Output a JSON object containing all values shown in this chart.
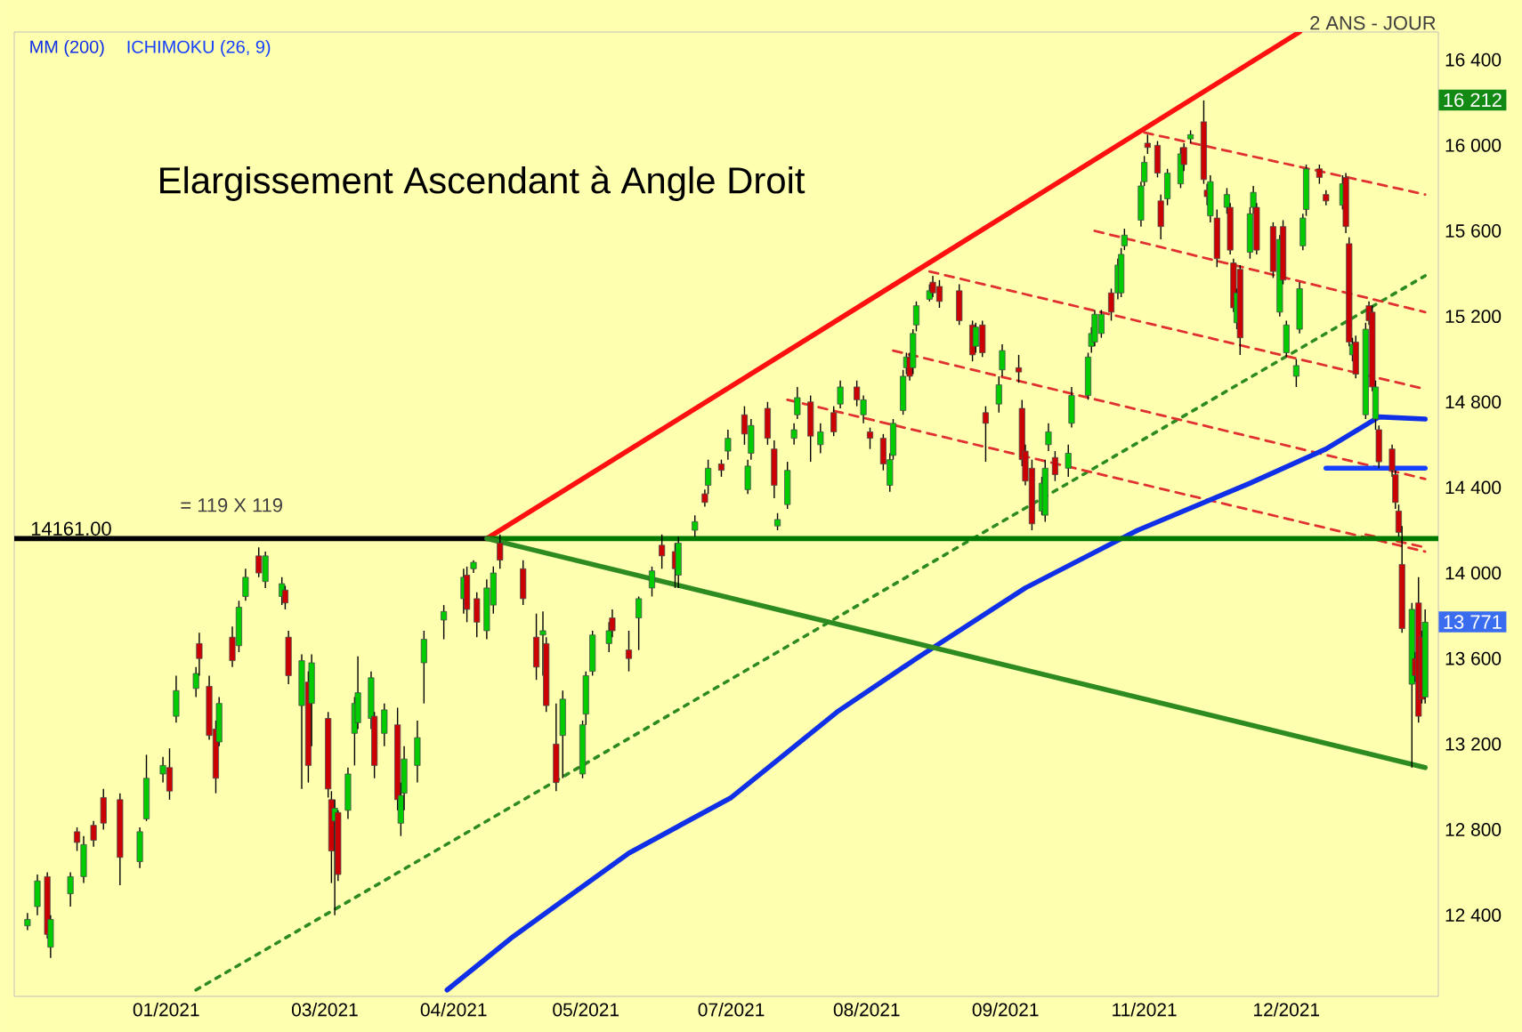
{
  "chart_data": {
    "type": "candlestick",
    "title": "Elargissement Ascendant à Angle Droit",
    "annotations": [
      "= 119 X 119",
      "2 ANS - JOUR",
      {
        "text": "14161.00",
        "x": "2020-12-01",
        "y": 14161
      },
      {
        "text": "16 212",
        "y": 16212
      },
      {
        "text": "13 771",
        "y": 13771
      }
    ],
    "legend": "top left",
    "xlim": [
      "2020-11-27",
      "2022-02-01"
    ],
    "ylim": [
      12020,
      16530
    ],
    "xticks": [
      {
        "value": "2021-01-12",
        "label": "01/2021"
      },
      {
        "value": "2021-03-01",
        "label": "03/2021"
      },
      {
        "value": "2021-04-09",
        "label": "04/2021"
      },
      {
        "value": "2021-05-19",
        "label": "05/2021"
      },
      {
        "value": "2021-07-02",
        "label": "07/2021"
      },
      {
        "value": "2021-08-12",
        "label": "08/2021"
      },
      {
        "value": "2021-09-23",
        "label": "09/2021"
      },
      {
        "value": "2021-11-04",
        "label": "11/2021"
      },
      {
        "value": "2021-12-17",
        "label": "12/2021"
      }
    ],
    "yticks": [
      {
        "value": 12400,
        "label": "12 400"
      },
      {
        "value": 12800,
        "label": "12 800"
      },
      {
        "value": 13200,
        "label": "13 200"
      },
      {
        "value": 13600,
        "label": "13 600"
      },
      {
        "value": 14000,
        "label": "14 000"
      },
      {
        "value": 14400,
        "label": "14 400"
      },
      {
        "value": 14800,
        "label": "14 800"
      },
      {
        "value": 15200,
        "label": "15 200"
      },
      {
        "value": 15600,
        "label": "15 600"
      },
      {
        "value": 16000,
        "label": "16 000"
      },
      {
        "value": 16400,
        "label": "16 400"
      }
    ],
    "x": [
      "2020-12-01",
      "2020-12-04",
      "2020-12-07",
      "2020-12-08",
      "2020-12-14",
      "2020-12-16",
      "2020-12-18",
      "2020-12-21",
      "2020-12-24",
      "2020-12-29",
      "2021-01-04",
      "2021-01-06",
      "2021-01-11",
      "2021-01-13",
      "2021-01-15",
      "2021-01-21",
      "2021-01-22",
      "2021-01-25",
      "2021-01-27",
      "2021-01-28",
      "2021-02-01",
      "2021-02-03",
      "2021-02-05",
      "2021-02-09",
      "2021-02-11",
      "2021-02-16",
      "2021-02-17",
      "2021-02-18",
      "2021-02-22",
      "2021-02-24",
      "2021-02-25",
      "2021-03-02",
      "2021-03-03",
      "2021-03-04",
      "2021-03-05",
      "2021-03-08",
      "2021-03-10",
      "2021-03-11",
      "2021-03-15",
      "2021-03-16",
      "2021-03-19",
      "2021-03-23",
      "2021-03-24",
      "2021-03-25",
      "2021-03-29",
      "2021-03-31",
      "2021-04-06",
      "2021-04-12",
      "2021-04-13",
      "2021-04-15",
      "2021-04-16",
      "2021-04-19",
      "2021-04-21",
      "2021-04-23",
      "2021-04-30",
      "2021-05-04",
      "2021-05-06",
      "2021-05-07",
      "2021-05-10",
      "2021-05-12",
      "2021-05-18",
      "2021-05-19",
      "2021-05-21",
      "2021-05-26",
      "2021-05-27",
      "2021-06-01",
      "2021-06-04",
      "2021-06-08",
      "2021-06-11",
      "2021-06-15",
      "2021-06-16",
      "2021-06-21",
      "2021-06-24",
      "2021-06-25",
      "2021-06-29",
      "2021-07-01",
      "2021-07-06",
      "2021-07-07",
      "2021-07-08",
      "2021-07-13",
      "2021-07-15",
      "2021-07-16",
      "2021-07-19",
      "2021-07-21",
      "2021-07-22",
      "2021-07-26",
      "2021-07-29",
      "2021-08-02",
      "2021-08-04",
      "2021-08-09",
      "2021-08-11",
      "2021-08-13",
      "2021-08-17",
      "2021-08-19",
      "2021-08-20",
      "2021-08-23",
      "2021-08-24",
      "2021-08-25",
      "2021-08-26",
      "2021-08-27",
      "2021-08-31",
      "2021-09-01",
      "2021-09-03",
      "2021-09-09",
      "2021-09-13",
      "2021-09-14",
      "2021-09-16",
      "2021-09-17",
      "2021-09-21",
      "2021-09-22",
      "2021-09-27",
      "2021-09-28",
      "2021-09-29",
      "2021-10-01",
      "2021-10-04",
      "2021-10-05",
      "2021-10-06",
      "2021-10-08",
      "2021-10-12",
      "2021-10-13",
      "2021-10-18",
      "2021-10-19",
      "2021-10-20",
      "2021-10-22",
      "2021-10-25",
      "2021-10-27",
      "2021-10-28",
      "2021-10-29",
      "2021-11-03",
      "2021-11-04",
      "2021-11-05",
      "2021-11-08",
      "2021-11-09",
      "2021-11-11",
      "2021-11-15",
      "2021-11-16",
      "2021-11-18",
      "2021-11-22",
      "2021-11-23",
      "2021-11-24",
      "2021-11-26",
      "2021-11-29",
      "2021-11-30",
      "2021-12-01",
      "2021-12-02",
      "2021-12-03",
      "2021-12-06",
      "2021-12-07",
      "2021-12-08",
      "2021-12-13",
      "2021-12-15",
      "2021-12-16",
      "2021-12-17",
      "2021-12-20",
      "2021-12-21",
      "2021-12-22",
      "2021-12-23",
      "2021-12-27",
      "2021-12-29",
      "2022-01-03",
      "2022-01-04",
      "2022-01-05",
      "2022-01-06",
      "2022-01-07",
      "2022-01-10",
      "2022-01-11",
      "2022-01-12",
      "2022-01-13",
      "2022-01-14",
      "2022-01-18",
      "2022-01-19",
      "2022-01-20",
      "2022-01-21",
      "2022-01-24",
      "2022-01-25",
      "2022-01-26",
      "2022-01-27",
      "2022-01-28"
    ],
    "ohlc": [
      [
        12350,
        12410,
        12330,
        12380
      ],
      [
        12440,
        12590,
        12400,
        12560
      ],
      [
        12580,
        12600,
        12290,
        12310
      ],
      [
        12250,
        12400,
        12200,
        12380
      ],
      [
        12500,
        12600,
        12440,
        12580
      ],
      [
        12790,
        12810,
        12700,
        12740
      ],
      [
        12580,
        12770,
        12550,
        12730
      ],
      [
        12820,
        12840,
        12720,
        12750
      ],
      [
        12950,
        12990,
        12800,
        12830
      ],
      [
        12940,
        12970,
        12540,
        12670
      ],
      [
        12650,
        12810,
        12620,
        12790
      ],
      [
        12850,
        13150,
        12840,
        13040
      ],
      [
        13060,
        13140,
        13020,
        13100
      ],
      [
        13090,
        13180,
        12940,
        12980
      ],
      [
        13330,
        13520,
        13300,
        13450
      ],
      [
        13460,
        13560,
        13420,
        13530
      ],
      [
        13670,
        13720,
        13520,
        13600
      ],
      [
        13470,
        13520,
        13220,
        13240
      ],
      [
        13270,
        13310,
        12970,
        13040
      ],
      [
        13210,
        13420,
        13190,
        13390
      ],
      [
        13700,
        13750,
        13560,
        13590
      ],
      [
        13660,
        13870,
        13630,
        13840
      ],
      [
        13890,
        14020,
        13870,
        13980
      ],
      [
        14080,
        14120,
        13980,
        14000
      ],
      [
        13960,
        14100,
        13930,
        14080
      ],
      [
        13890,
        13980,
        13850,
        13950
      ],
      [
        13920,
        13940,
        13830,
        13860
      ],
      [
        13700,
        13730,
        13480,
        13520
      ],
      [
        13380,
        13620,
        12990,
        13590
      ],
      [
        13490,
        13540,
        13020,
        13100
      ],
      [
        13390,
        13620,
        13190,
        13580
      ],
      [
        13320,
        13350,
        12950,
        12990
      ],
      [
        12940,
        12980,
        12550,
        12700
      ],
      [
        12840,
        12940,
        12400,
        12900
      ],
      [
        12880,
        12890,
        12560,
        12590
      ],
      [
        12890,
        13090,
        12850,
        13060
      ],
      [
        13250,
        13420,
        13100,
        13390
      ],
      [
        13300,
        13610,
        13270,
        13440
      ],
      [
        13320,
        13540,
        13270,
        13510
      ],
      [
        13330,
        13350,
        13040,
        13100
      ],
      [
        13250,
        13390,
        13190,
        13360
      ],
      [
        13290,
        13370,
        12890,
        12940
      ],
      [
        12830,
        13020,
        12770,
        12960
      ],
      [
        12970,
        13190,
        12890,
        13130
      ],
      [
        13100,
        13310,
        13020,
        13230
      ],
      [
        13580,
        13730,
        13390,
        13690
      ],
      [
        13780,
        13850,
        13690,
        13820
      ],
      [
        13880,
        14020,
        13810,
        13980
      ],
      [
        13990,
        14030,
        13770,
        13830
      ],
      [
        14020,
        14060,
        14000,
        14050
      ],
      [
        13880,
        13910,
        13700,
        13770
      ],
      [
        13730,
        13970,
        13690,
        13930
      ],
      [
        13850,
        14030,
        13810,
        14000
      ],
      [
        14140,
        14180,
        14020,
        14060
      ],
      [
        14020,
        14060,
        13850,
        13880
      ],
      [
        13700,
        13810,
        13500,
        13560
      ],
      [
        13710,
        13820,
        13520,
        13730
      ],
      [
        13670,
        13700,
        13350,
        13380
      ],
      [
        13200,
        13390,
        12980,
        13020
      ],
      [
        13240,
        13450,
        13040,
        13410
      ],
      [
        13060,
        13310,
        13040,
        13290
      ],
      [
        13340,
        13540,
        13290,
        13520
      ],
      [
        13540,
        13730,
        13520,
        13710
      ],
      [
        13670,
        13770,
        13630,
        13730
      ],
      [
        13790,
        13830,
        13700,
        13730
      ],
      [
        13640,
        13730,
        13540,
        13600
      ],
      [
        13790,
        13890,
        13640,
        13880
      ],
      [
        13930,
        14030,
        13890,
        14010
      ],
      [
        14130,
        14180,
        14020,
        14080
      ],
      [
        14100,
        14140,
        13930,
        14020
      ],
      [
        13990,
        14170,
        13930,
        14140
      ],
      [
        14200,
        14270,
        14170,
        14240
      ],
      [
        14370,
        14390,
        14310,
        14330
      ],
      [
        14410,
        14530,
        14370,
        14490
      ],
      [
        14510,
        14530,
        14450,
        14480
      ],
      [
        14570,
        14670,
        14530,
        14630
      ],
      [
        14740,
        14780,
        14600,
        14650
      ],
      [
        14390,
        14530,
        14370,
        14500
      ],
      [
        14560,
        14720,
        14530,
        14690
      ],
      [
        14770,
        14800,
        14600,
        14630
      ],
      [
        14580,
        14620,
        14350,
        14410
      ],
      [
        14220,
        14280,
        14200,
        14250
      ],
      [
        14320,
        14520,
        14300,
        14480
      ],
      [
        14630,
        14700,
        14600,
        14670
      ],
      [
        14740,
        14870,
        14720,
        14820
      ],
      [
        14800,
        14830,
        14520,
        14640
      ],
      [
        14600,
        14700,
        14560,
        14660
      ],
      [
        14750,
        14780,
        14640,
        14660
      ],
      [
        14790,
        14900,
        14770,
        14870
      ],
      [
        14870,
        14900,
        14780,
        14810
      ],
      [
        14740,
        14830,
        14700,
        14810
      ],
      [
        14660,
        14680,
        14580,
        14630
      ],
      [
        14630,
        14650,
        14480,
        14510
      ],
      [
        14410,
        14560,
        14380,
        14530
      ],
      [
        14550,
        14720,
        14530,
        14700
      ],
      [
        14760,
        14950,
        14740,
        14920
      ],
      [
        14960,
        15030,
        14930,
        15010
      ],
      [
        15010,
        15030,
        14900,
        14920
      ],
      [
        14960,
        15140,
        14930,
        15120
      ],
      [
        15160,
        15270,
        15130,
        15250
      ],
      [
        15280,
        15350,
        15270,
        15320
      ],
      [
        15360,
        15390,
        15290,
        15310
      ],
      [
        15340,
        15370,
        15240,
        15270
      ],
      [
        15320,
        15350,
        15160,
        15180
      ],
      [
        15160,
        15180,
        14990,
        15020
      ],
      [
        15060,
        15170,
        15030,
        15150
      ],
      [
        15160,
        15180,
        15010,
        15030
      ],
      [
        14750,
        14780,
        14520,
        14700
      ],
      [
        14790,
        14920,
        14750,
        14880
      ],
      [
        14950,
        15070,
        14920,
        15040
      ],
      [
        14960,
        15020,
        14890,
        14940
      ],
      [
        14770,
        14810,
        14500,
        14530
      ],
      [
        14570,
        14600,
        14410,
        14430
      ],
      [
        14490,
        14530,
        14200,
        14230
      ],
      [
        14290,
        14450,
        14270,
        14420
      ],
      [
        14270,
        14530,
        14240,
        14490
      ],
      [
        14600,
        14700,
        14570,
        14660
      ],
      [
        14540,
        14570,
        14430,
        14460
      ],
      [
        14490,
        14600,
        14450,
        14560
      ],
      [
        14700,
        14870,
        14680,
        14830
      ],
      [
        14830,
        15030,
        14810,
        15010
      ],
      [
        15060,
        15150,
        15030,
        15120
      ],
      [
        15080,
        15230,
        15060,
        15210
      ],
      [
        15120,
        15230,
        15100,
        15210
      ],
      [
        15310,
        15330,
        15180,
        15220
      ],
      [
        15310,
        15470,
        15280,
        15440
      ],
      [
        15310,
        15520,
        15290,
        15490
      ],
      [
        15530,
        15610,
        15510,
        15580
      ],
      [
        15650,
        15830,
        15620,
        15810
      ],
      [
        15830,
        15950,
        15810,
        15920
      ],
      [
        16010,
        16050,
        15960,
        15990
      ],
      [
        16000,
        16020,
        15850,
        15870
      ],
      [
        15740,
        15770,
        15560,
        15620
      ],
      [
        15750,
        15890,
        15720,
        15870
      ],
      [
        15820,
        15990,
        15800,
        15960
      ],
      [
        15990,
        16010,
        15880,
        15910
      ],
      [
        16030,
        16070,
        16010,
        16050
      ],
      [
        16110,
        16210,
        15820,
        15840
      ],
      [
        15790,
        15820,
        15720,
        15760
      ],
      [
        15670,
        15860,
        15640,
        15830
      ],
      [
        15660,
        15700,
        15430,
        15470
      ],
      [
        15710,
        15800,
        15680,
        15770
      ],
      [
        15710,
        15730,
        15490,
        15510
      ],
      [
        15450,
        15470,
        15220,
        15240
      ],
      [
        15170,
        15330,
        15140,
        15310
      ],
      [
        15420,
        15440,
        15020,
        15100
      ],
      [
        15500,
        15710,
        15470,
        15680
      ],
      [
        15710,
        15810,
        15680,
        15780
      ],
      [
        15710,
        15730,
        15490,
        15510
      ],
      [
        15620,
        15640,
        15380,
        15410
      ],
      [
        15220,
        15580,
        15200,
        15560
      ],
      [
        15620,
        15650,
        15350,
        15370
      ],
      [
        15030,
        15180,
        15010,
        15160
      ],
      [
        14920,
        15000,
        14870,
        14970
      ],
      [
        15140,
        15360,
        15120,
        15330
      ],
      [
        15530,
        15680,
        15510,
        15660
      ],
      [
        15700,
        15910,
        15670,
        15890
      ],
      [
        15890,
        15910,
        15820,
        15850
      ],
      [
        15770,
        15790,
        15720,
        15740
      ],
      [
        15720,
        15860,
        15700,
        15820
      ],
      [
        15850,
        15870,
        15590,
        15620
      ],
      [
        15540,
        15570,
        15060,
        15080
      ],
      [
        15020,
        15100,
        14990,
        15070
      ],
      [
        15080,
        15110,
        14910,
        14930
      ],
      [
        14740,
        15170,
        14720,
        15140
      ],
      [
        15250,
        15270,
        15160,
        15180
      ],
      [
        15220,
        15250,
        14850,
        14870
      ],
      [
        14720,
        14900,
        14670,
        14870
      ],
      [
        14670,
        14690,
        14490,
        14520
      ],
      [
        14580,
        14600,
        14450,
        14480
      ],
      [
        14460,
        14480,
        14300,
        14330
      ],
      [
        14290,
        14320,
        14170,
        14190
      ],
      [
        14040,
        14220,
        13720,
        13740
      ],
      [
        13480,
        13860,
        13090,
        13830
      ],
      [
        13600,
        13630,
        13490,
        13520
      ],
      [
        13860,
        13980,
        13300,
        13330
      ],
      [
        13700,
        13730,
        13390,
        13410
      ],
      [
        13420,
        13830,
        13390,
        13770
      ]
    ],
    "series": [
      {
        "type": "line",
        "color": "#2e8b22",
        "line_style": "dotted",
        "x": [
          "2021-01-21",
          "2022-01-28"
        ],
        "values": [
          12050,
          15390
        ]
      },
      {
        "type": "line",
        "color": "#e03030",
        "line_style": "dashed",
        "x": [
          "2021-11-04",
          "2022-01-28"
        ],
        "values": [
          16060,
          15770
        ]
      },
      {
        "type": "line",
        "color": "#e03030",
        "line_style": "dashed",
        "x": [
          "2021-10-20",
          "2022-01-28"
        ],
        "values": [
          15600,
          15220
        ]
      },
      {
        "type": "line",
        "color": "#e03030",
        "line_style": "dashed",
        "x": [
          "2021-08-31",
          "2022-01-28"
        ],
        "values": [
          15410,
          14860
        ]
      },
      {
        "type": "line",
        "color": "#e03030",
        "line_style": "dashed",
        "x": [
          "2021-08-20",
          "2022-01-28"
        ],
        "values": [
          15040,
          14440
        ]
      },
      {
        "type": "line",
        "color": "#e03030",
        "line_style": "dashed",
        "x": [
          "2021-07-19",
          "2022-01-28"
        ],
        "values": [
          14810,
          14100
        ]
      },
      {
        "type": "line",
        "color": "#e03030",
        "line_style": "dashed",
        "x": [
          "2022-01-10",
          "2022-01-28"
        ],
        "values": [
          14180,
          14120
        ]
      },
      {
        "type": "line",
        "name": "MM (200)",
        "color": "#1030e8",
        "line_style": "solid",
        "x": [
          "2021-04-07",
          "2021-04-19",
          "2021-04-27",
          "2021-06-01",
          "2021-07-02",
          "2021-08-03",
          "2021-08-27",
          "2021-09-29",
          "2021-11-02",
          "2021-12-06",
          "2021-12-29",
          "2022-01-14",
          "2022-01-28"
        ],
        "values": [
          12050,
          12200,
          12300,
          12690,
          12950,
          13350,
          13600,
          13930,
          14200,
          14420,
          14580,
          14730,
          14720
        ]
      },
      {
        "type": "line",
        "name": "ICHIMOKU (26, 9)",
        "color": "#1540ff",
        "line_style": "solid",
        "x": [
          "2021-12-29",
          "2022-01-28"
        ],
        "values": [
          14490,
          14490
        ]
      },
      {
        "type": "line",
        "color": "#ff1010",
        "line_style": "solid",
        "x": [
          "2021-04-19",
          "2021-12-21"
        ],
        "values": [
          14161,
          16530
        ]
      },
      {
        "type": "line",
        "color": "#007a00",
        "line_style": "solid",
        "x": [
          "2021-04-19",
          "2022-02-01"
        ],
        "values": [
          14161,
          14161
        ]
      },
      {
        "type": "line",
        "color": "#000000",
        "line_style": "solid",
        "x": [
          "2020-11-27",
          "2021-04-19"
        ],
        "values": [
          14161,
          14161
        ]
      },
      {
        "type": "line",
        "color": "#2e8b22",
        "line_style": "solid",
        "x": [
          "2021-04-19",
          "2022-01-28"
        ],
        "values": [
          14161,
          13090
        ]
      }
    ]
  }
}
